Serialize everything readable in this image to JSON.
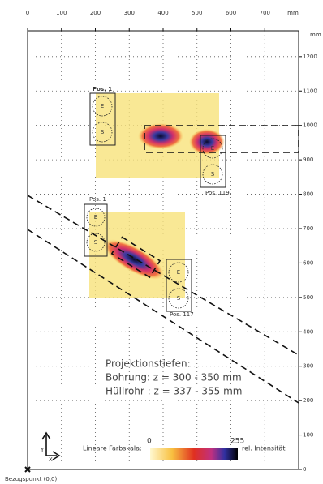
{
  "chart_data": {
    "type": "heatmap-figure",
    "x_unit": "mm",
    "y_unit": "mm",
    "xlim": [
      0,
      800
    ],
    "ylim": [
      0,
      1275
    ],
    "xticks": [
      0,
      100,
      200,
      300,
      400,
      500,
      600,
      700
    ],
    "yticks": [
      0,
      100,
      200,
      300,
      400,
      500,
      600,
      700,
      800,
      900,
      1000,
      1100,
      1200
    ],
    "grid": true,
    "annotations": {
      "pos1_top": "Pos. 1",
      "pos119": "Pos. 119",
      "pos1_bottom": "Pos. 1",
      "pos117": "Pos. 117",
      "e1": "E",
      "s1": "S",
      "e2": "E",
      "s2": "S",
      "e3": "E",
      "s3": "S",
      "e4": "E",
      "s4": "S",
      "depth_title": "Projektionstiefen:",
      "depth_bore": "Bohrung: z = 300 - 350 mm",
      "depth_duct": "Hüllrohr : z = 337 - 355 mm",
      "scale_label": "Lineare Farbskala:",
      "scale_min": "0",
      "scale_max": "255",
      "scale_unit": "rel. Intensität",
      "axis_y": "Y",
      "axis_x": "X",
      "origin": "Bezugspunkt (0,0)"
    }
  }
}
